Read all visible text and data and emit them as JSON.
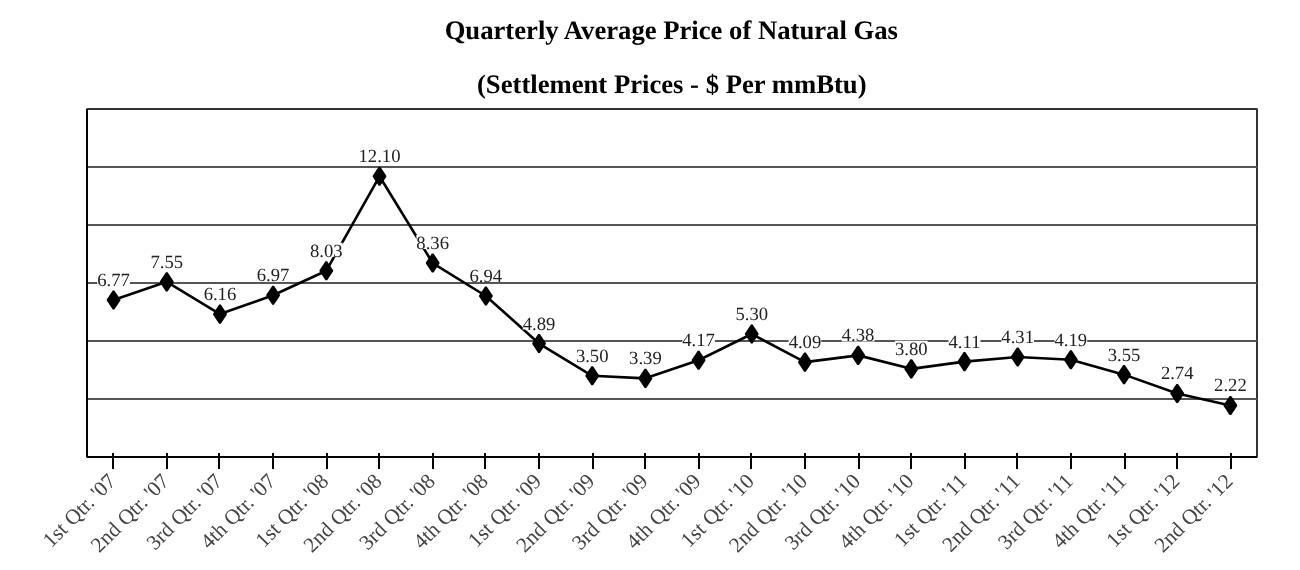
{
  "chart_data": {
    "type": "line",
    "title": "Quarterly Average Price of Natural Gas",
    "subtitle": "(Settlement Prices - $ Per mmBtu)",
    "categories": [
      "1st Qtr. '07",
      "2nd Qtr. '07",
      "3rd Qtr. '07",
      "4th Qtr. '07",
      "1st Qtr. '08",
      "2nd Qtr. '08",
      "3rd Qtr. '08",
      "4th Qtr. '08",
      "1st Qtr. '09",
      "2nd Qtr. '09",
      "3rd Qtr. '09",
      "4th Qtr. '09",
      "1st Qtr. '10",
      "2nd Qtr. '10",
      "3rd Qtr. '10",
      "4th Qtr. '10",
      "1st Qtr. '11",
      "2nd Qtr. '11",
      "3rd Qtr. '11",
      "4th Qtr. '11",
      "1st Qtr. '12",
      "2nd Qtr. '12"
    ],
    "series": [
      {
        "color": "#000000",
        "values": [
          6.77,
          7.55,
          6.16,
          6.97,
          8.03,
          12.1,
          8.36,
          6.94,
          4.89,
          3.5,
          3.39,
          4.17,
          5.3,
          4.09,
          4.38,
          3.8,
          4.11,
          4.31,
          4.19,
          3.55,
          2.74,
          2.22
        ],
        "value_labels": [
          "6.77",
          "7.55",
          "6.16",
          "6.97",
          "8.03",
          "12.10",
          "8.36",
          "6.94",
          "4.89",
          "3.50",
          "3.39",
          "4.17",
          "5.30",
          "4.09",
          "4.38",
          "3.80",
          "4.11",
          "4.31",
          "4.19",
          "3.55",
          "2.74",
          "2.22"
        ]
      }
    ],
    "ylim": [
      0,
      15
    ],
    "yticks": [
      {
        "value": 0,
        "label": null
      },
      {
        "value": 2.5,
        "label": null
      },
      {
        "value": 5,
        "label": null
      },
      {
        "value": 7.5,
        "label": null
      },
      {
        "value": 10,
        "label": null
      },
      {
        "value": 12.5,
        "label": null
      },
      {
        "value": 15,
        "label": null
      }
    ],
    "tick_labels": "x",
    "grid": "y",
    "marker": "diamond",
    "line_style": "solid"
  }
}
